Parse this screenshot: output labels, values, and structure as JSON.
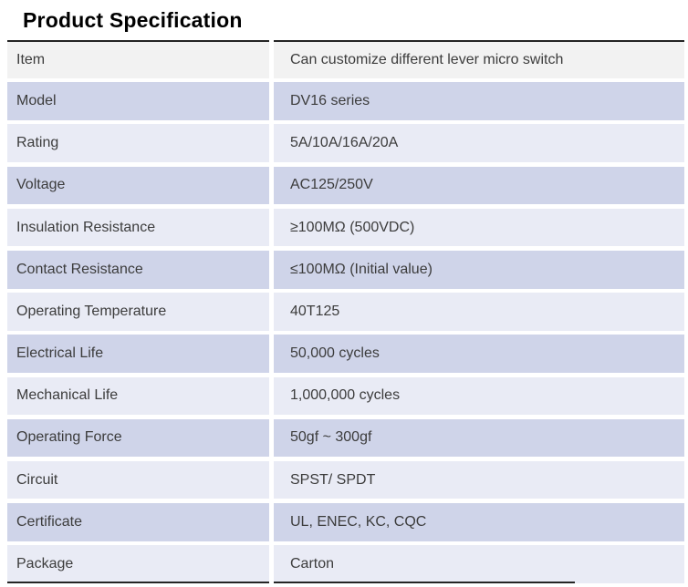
{
  "title": "Product Specification",
  "table": {
    "columns": [
      "label",
      "value"
    ],
    "rows": [
      {
        "label": "Item",
        "value": "Can customize different lever micro switch"
      },
      {
        "label": "Model",
        "value": "DV16 series"
      },
      {
        "label": "Rating",
        "value": "5A/10A/16A/20A"
      },
      {
        "label": "Voltage",
        "value": "AC125/250V"
      },
      {
        "label": "Insulation Resistance",
        "value": "≥100MΩ (500VDC)"
      },
      {
        "label": "Contact Resistance",
        "value": "≤100MΩ (Initial value)"
      },
      {
        "label": "Operating Temperature",
        "value": "40T125"
      },
      {
        "label": "Electrical Life",
        "value": "50,000 cycles"
      },
      {
        "label": "Mechanical Life",
        "value": "1,000,000 cycles"
      },
      {
        "label": "Operating Force",
        "value": "50gf ~ 300gf"
      },
      {
        "label": "Circuit",
        "value": "SPST/ SPDT"
      },
      {
        "label": "Certificate",
        "value": "UL, ENEC, KC, CQC"
      },
      {
        "label": "Package",
        "value": "Carton"
      }
    ]
  },
  "colors": {
    "header_row_bg": "#f2f2f2",
    "lavender_row_bg": "#cfd4e9",
    "pale_row_bg": "#e9ebf5",
    "border_dark": "#242424",
    "text": "#3c3c3c",
    "title_text": "#000000"
  }
}
